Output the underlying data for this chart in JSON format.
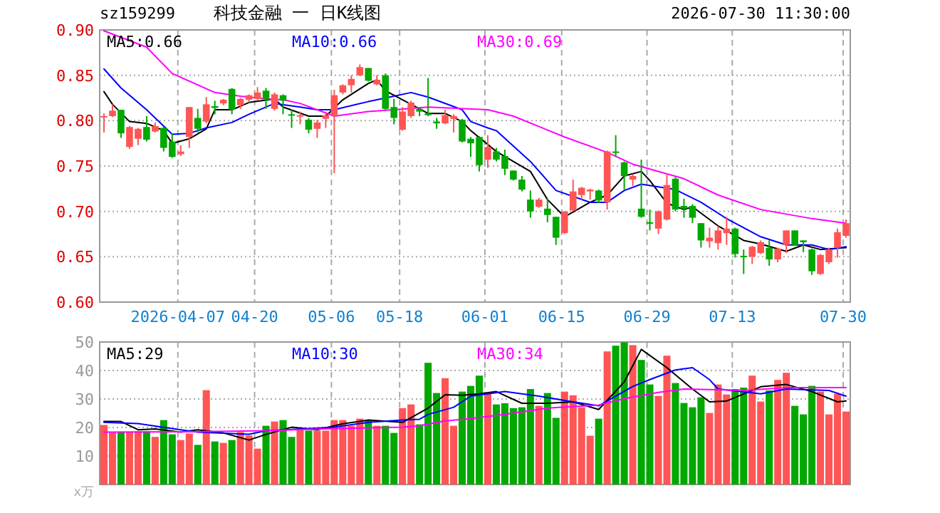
{
  "chart_data": [
    {
      "type": "candlestick",
      "title": "科技金融 一 日K线图",
      "subtitle": "sz159299",
      "annotations": [
        "2026-07-30 11:30:00"
      ],
      "grid": true,
      "legend": "top",
      "ylim": [
        0.6,
        0.9
      ],
      "yticks": [
        {
          "value": 0.6,
          "label": "0.60"
        },
        {
          "value": 0.65,
          "label": "0.65"
        },
        {
          "value": 0.7,
          "label": "0.70"
        },
        {
          "value": 0.75,
          "label": "0.75"
        },
        {
          "value": 0.8,
          "label": "0.80"
        },
        {
          "value": 0.85,
          "label": "0.85"
        },
        {
          "value": 0.9,
          "label": "0.90"
        }
      ],
      "categories": [
        null,
        null,
        null,
        null,
        null,
        null,
        null,
        null,
        null,
        "2026-04-07",
        null,
        null,
        null,
        null,
        null,
        null,
        null,
        null,
        "04-20",
        null,
        null,
        null,
        null,
        null,
        null,
        null,
        null,
        "05-06",
        null,
        null,
        null,
        null,
        null,
        null,
        null,
        "05-18",
        null,
        null,
        null,
        null,
        null,
        null,
        null,
        null,
        null,
        "06-01",
        null,
        null,
        null,
        null,
        null,
        null,
        null,
        null,
        "06-15",
        null,
        null,
        null,
        null,
        null,
        null,
        null,
        null,
        null,
        "06-29",
        null,
        null,
        null,
        null,
        null,
        null,
        null,
        null,
        null,
        "07-13",
        null,
        null,
        null,
        null,
        null,
        null,
        null,
        null,
        null,
        null,
        null,
        null,
        "07-30"
      ],
      "ohlc": [
        [
          0.804,
          0.808,
          0.787,
          0.805
        ],
        [
          0.805,
          0.818,
          0.804,
          0.811
        ],
        [
          0.812,
          0.812,
          0.781,
          0.786
        ],
        [
          0.771,
          0.794,
          0.769,
          0.793
        ],
        [
          0.78,
          0.792,
          0.773,
          0.791
        ],
        [
          0.793,
          0.805,
          0.777,
          0.779
        ],
        [
          0.788,
          0.798,
          0.787,
          0.794
        ],
        [
          0.792,
          0.793,
          0.766,
          0.77
        ],
        [
          0.777,
          0.786,
          0.759,
          0.76
        ],
        [
          0.763,
          0.773,
          0.761,
          0.766
        ],
        [
          0.782,
          0.815,
          0.77,
          0.815
        ],
        [
          0.803,
          0.813,
          0.787,
          0.791
        ],
        [
          0.799,
          0.826,
          0.797,
          0.818
        ],
        [
          0.816,
          0.822,
          0.807,
          0.814
        ],
        [
          0.819,
          0.824,
          0.817,
          0.823
        ],
        [
          0.835,
          0.836,
          0.807,
          0.812
        ],
        [
          0.817,
          0.825,
          0.813,
          0.824
        ],
        [
          0.823,
          0.829,
          0.82,
          0.828
        ],
        [
          0.824,
          0.837,
          0.822,
          0.831
        ],
        [
          0.833,
          0.836,
          0.813,
          0.824
        ],
        [
          0.813,
          0.831,
          0.811,
          0.829
        ],
        [
          0.828,
          0.829,
          0.807,
          0.822
        ],
        [
          0.807,
          0.812,
          0.792,
          0.806
        ],
        [
          0.805,
          0.81,
          0.796,
          0.806
        ],
        [
          0.801,
          0.803,
          0.786,
          0.79
        ],
        [
          0.791,
          0.801,
          0.781,
          0.798
        ],
        [
          0.802,
          0.81,
          0.792,
          0.806
        ],
        [
          0.806,
          0.834,
          0.742,
          0.828
        ],
        [
          0.831,
          0.84,
          0.829,
          0.839
        ],
        [
          0.839,
          0.85,
          0.831,
          0.846
        ],
        [
          0.85,
          0.862,
          0.849,
          0.859
        ],
        [
          0.858,
          0.858,
          0.843,
          0.844
        ],
        [
          0.84,
          0.85,
          0.839,
          0.845
        ],
        [
          0.85,
          0.852,
          0.812,
          0.813
        ],
        [
          0.815,
          0.824,
          0.796,
          0.803
        ],
        [
          0.79,
          0.815,
          0.789,
          0.81
        ],
        [
          0.805,
          0.822,
          0.803,
          0.82
        ],
        [
          0.813,
          0.815,
          0.805,
          0.81
        ],
        [
          0.808,
          0.847,
          0.805,
          0.806
        ],
        [
          0.799,
          0.803,
          0.791,
          0.797
        ],
        [
          0.797,
          0.812,
          0.796,
          0.806
        ],
        [
          0.802,
          0.807,
          0.787,
          0.805
        ],
        [
          0.801,
          0.802,
          0.776,
          0.777
        ],
        [
          0.78,
          0.782,
          0.76,
          0.775
        ],
        [
          0.782,
          0.783,
          0.744,
          0.751
        ],
        [
          0.757,
          0.784,
          0.748,
          0.771
        ],
        [
          0.766,
          0.77,
          0.755,
          0.757
        ],
        [
          0.761,
          0.768,
          0.74,
          0.747
        ],
        [
          0.745,
          0.745,
          0.734,
          0.735
        ],
        [
          0.735,
          0.739,
          0.722,
          0.724
        ],
        [
          0.713,
          0.723,
          0.693,
          0.7
        ],
        [
          0.705,
          0.715,
          0.704,
          0.713
        ],
        [
          0.703,
          0.714,
          0.688,
          0.696
        ],
        [
          0.694,
          0.694,
          0.663,
          0.671
        ],
        [
          0.676,
          0.7,
          0.675,
          0.7
        ],
        [
          0.701,
          0.735,
          0.7,
          0.722
        ],
        [
          0.718,
          0.727,
          0.713,
          0.726
        ],
        [
          0.722,
          0.725,
          0.713,
          0.724
        ],
        [
          0.723,
          0.724,
          0.709,
          0.712
        ],
        [
          0.71,
          0.767,
          0.702,
          0.766
        ],
        [
          0.766,
          0.784,
          0.76,
          0.765
        ],
        [
          0.754,
          0.755,
          0.724,
          0.739
        ],
        [
          0.735,
          0.741,
          0.728,
          0.739
        ],
        [
          0.703,
          0.757,
          0.693,
          0.694
        ],
        [
          0.688,
          0.702,
          0.679,
          0.687
        ],
        [
          0.681,
          0.701,
          0.675,
          0.7
        ],
        [
          0.691,
          0.742,
          0.69,
          0.729
        ],
        [
          0.736,
          0.738,
          0.7,
          0.702
        ],
        [
          0.706,
          0.714,
          0.693,
          0.703
        ],
        [
          0.706,
          0.708,
          0.687,
          0.693
        ],
        [
          0.687,
          0.687,
          0.66,
          0.668
        ],
        [
          0.667,
          0.682,
          0.66,
          0.671
        ],
        [
          0.665,
          0.684,
          0.658,
          0.679
        ],
        [
          0.676,
          0.694,
          0.663,
          0.681
        ],
        [
          0.681,
          0.682,
          0.649,
          0.653
        ],
        [
          0.651,
          0.658,
          0.631,
          0.65
        ],
        [
          0.65,
          0.662,
          0.642,
          0.661
        ],
        [
          0.654,
          0.668,
          0.653,
          0.666
        ],
        [
          0.66,
          0.668,
          0.64,
          0.647
        ],
        [
          0.647,
          0.66,
          0.644,
          0.659
        ],
        [
          0.663,
          0.679,
          0.654,
          0.679
        ],
        [
          0.679,
          0.679,
          0.662,
          0.663
        ],
        [
          0.668,
          0.668,
          0.655,
          0.666
        ],
        [
          0.658,
          0.659,
          0.63,
          0.634
        ],
        [
          0.631,
          0.653,
          0.63,
          0.652
        ],
        [
          0.644,
          0.66,
          0.642,
          0.658
        ],
        [
          0.66,
          0.681,
          0.649,
          0.677
        ],
        [
          0.673,
          0.691,
          0.671,
          0.687
        ]
      ],
      "colors": [
        "#ff5555",
        "#ff5555",
        "#00a800",
        "#ff5555",
        "#ff5555",
        "#00a800",
        "#ff5555",
        "#00a800",
        "#00a800",
        "#ff5555",
        "#ff5555",
        "#00a800",
        "#ff5555",
        "#00a800",
        "#ff5555",
        "#00a800",
        "#ff5555",
        "#ff5555",
        "#ff5555",
        "#00a800",
        "#ff5555",
        "#00a800",
        "#00a800",
        "#ff5555",
        "#00a800",
        "#ff5555",
        "#ff5555",
        "#ff5555",
        "#ff5555",
        "#ff5555",
        "#ff5555",
        "#00a800",
        "#ff5555",
        "#00a800",
        "#00a800",
        "#ff5555",
        "#ff5555",
        "#00a800",
        "#00a800",
        "#00a800",
        "#ff5555",
        "#ff5555",
        "#00a800",
        "#00a800",
        "#00a800",
        "#ff5555",
        "#00a800",
        "#00a800",
        "#00a800",
        "#00a800",
        "#00a800",
        "#ff5555",
        "#00a800",
        "#00a800",
        "#ff5555",
        "#ff5555",
        "#ff5555",
        "#ff5555",
        "#00a800",
        "#ff5555",
        "#00a800",
        "#00a800",
        "#ff5555",
        "#00a800",
        "#00a800",
        "#ff5555",
        "#ff5555",
        "#00a800",
        "#00a800",
        "#00a800",
        "#00a800",
        "#ff5555",
        "#ff5555",
        "#ff5555",
        "#00a800",
        "#00a800",
        "#ff5555",
        "#ff5555",
        "#00a800",
        "#ff5555",
        "#ff5555",
        "#00a800",
        "#00a800",
        "#00a800",
        "#ff5555",
        "#ff5555",
        "#ff5555",
        "#ff5555"
      ],
      "series": [
        {
          "name": "MA5:0.66",
          "type": "line",
          "color": "#000000",
          "values": [
            0.832,
            0.818,
            null,
            0.799,
            null,
            0.797,
            null,
            0.789,
            0.775,
            null,
            0.78,
            null,
            0.791,
            0.812,
            null,
            0.812,
            null,
            0.82,
            null,
            null,
            0.824,
            0.815,
            null,
            null,
            0.805,
            null,
            0.805,
            null,
            0.823,
            null,
            null,
            0.841,
            0.845,
            0.833,
            null,
            null,
            0.818,
            null,
            0.808,
            null,
            0.808,
            null,
            0.799,
            0.789,
            null,
            null,
            0.766,
            null,
            null,
            null,
            0.744,
            null,
            0.713,
            null,
            0.694,
            null,
            null,
            0.71,
            null,
            0.718,
            null,
            0.739,
            null,
            0.744,
            0.734,
            null,
            0.709,
            null,
            0.702,
            0.705,
            null,
            null,
            0.684,
            null,
            null,
            0.668,
            null,
            0.664,
            null,
            null,
            0.656,
            null,
            0.663,
            null,
            0.658,
            null,
            null,
            0.66
          ]
        },
        {
          "name": "MA10:0.66",
          "type": "line",
          "color": "#0000ff",
          "values": [
            0.857,
            null,
            0.836,
            null,
            null,
            0.812,
            null,
            0.794,
            0.785,
            null,
            0.786,
            null,
            0.792,
            null,
            null,
            0.798,
            null,
            0.807,
            null,
            null,
            0.819,
            null,
            null,
            0.815,
            null,
            0.812,
            null,
            0.812,
            null,
            null,
            null,
            0.821,
            null,
            null,
            0.827,
            null,
            0.831,
            null,
            0.826,
            null,
            null,
            null,
            0.812,
            0.799,
            null,
            0.792,
            0.789,
            null,
            null,
            null,
            0.755,
            null,
            null,
            0.723,
            null,
            null,
            null,
            0.71,
            null,
            0.71,
            null,
            0.723,
            null,
            0.73,
            null,
            null,
            null,
            0.724,
            null,
            null,
            0.71,
            null,
            null,
            0.692,
            null,
            null,
            null,
            0.672,
            null,
            null,
            0.663,
            null,
            null,
            0.663,
            null,
            0.658,
            null,
            0.661
          ]
        },
        {
          "name": "MA30:0.69",
          "type": "line",
          "color": "#ff00ff",
          "values": [
            0.899,
            null,
            null,
            null,
            null,
            0.881,
            null,
            null,
            0.852,
            null,
            null,
            null,
            null,
            0.831,
            null,
            null,
            0.827,
            null,
            null,
            0.824,
            null,
            0.823,
            null,
            0.819,
            null,
            null,
            null,
            0.805,
            null,
            null,
            null,
            0.81,
            null,
            null,
            0.812,
            null,
            null,
            null,
            0.815,
            null,
            null,
            null,
            null,
            null,
            null,
            0.812,
            null,
            null,
            0.805,
            null,
            null,
            null,
            null,
            null,
            0.782,
            null,
            null,
            null,
            null,
            0.765,
            null,
            null,
            0.752,
            null,
            null,
            null,
            null,
            null,
            0.736,
            null,
            null,
            null,
            0.718,
            null,
            null,
            null,
            null,
            0.702,
            null,
            null,
            null,
            null,
            null,
            0.692,
            null,
            null,
            null,
            0.687
          ]
        }
      ]
    },
    {
      "type": "bar",
      "ylabel": "x万",
      "grid": true,
      "legend": "top",
      "tick_labels": "y",
      "ylim": [
        0,
        50
      ],
      "yticks": [
        10,
        20,
        30,
        40,
        50
      ],
      "categories": [
        null,
        null,
        null,
        null,
        null,
        null,
        null,
        null,
        null,
        null,
        null,
        null,
        null,
        null,
        null,
        null,
        null,
        null,
        null,
        null,
        null,
        null,
        null,
        null,
        null,
        null,
        null,
        null,
        null,
        null,
        null,
        null,
        null,
        null,
        null,
        null,
        null,
        null,
        null,
        null,
        null,
        null,
        null,
        null,
        null,
        null,
        null,
        null,
        null,
        null,
        null,
        null,
        null,
        null,
        null,
        null,
        null,
        null,
        null,
        null,
        null,
        null,
        null,
        null,
        null,
        null,
        null,
        null,
        null,
        null,
        null,
        null,
        null,
        null,
        null,
        null,
        null,
        null,
        null,
        null,
        null,
        null,
        null,
        null,
        null,
        null,
        null,
        null
      ],
      "series": [
        {
          "type": "bar",
          "values": [
            20.9,
            18.4,
            18.4,
            18.4,
            18.7,
            18.7,
            16.7,
            22.6,
            17.6,
            15.6,
            17.9,
            13.9,
            33.1,
            15.1,
            14.6,
            15.6,
            18.4,
            17.2,
            12.6,
            20.6,
            22.1,
            22.6,
            16.7,
            19.6,
            18.9,
            18.9,
            18.9,
            22.6,
            22.6,
            20.6,
            23.1,
            22.6,
            20.6,
            20.6,
            18.1,
            26.8,
            28.1,
            21.1,
            42.7,
            32.1,
            37.3,
            20.6,
            32.6,
            34.6,
            38.2,
            31.8,
            28.1,
            28.5,
            26.8,
            27.1,
            33.5,
            27.6,
            32.1,
            23.4,
            32.6,
            31.3,
            27.1,
            17.1,
            23.1,
            46.7,
            48.7,
            49.9,
            48.9,
            43.7,
            35.1,
            31.1,
            45.2,
            35.6,
            28.6,
            27.1,
            30.6,
            25.1,
            35.1,
            31.6,
            33.5,
            34.0,
            38.2,
            29.1,
            33.0,
            36.7,
            39.2,
            27.6,
            24.6,
            34.6,
            32.6,
            24.6,
            31.8,
            25.6
          ],
          "colors": [
            "#ff5555",
            "#ff5555",
            "#00a800",
            "#ff5555",
            "#ff5555",
            "#00a800",
            "#ff5555",
            "#00a800",
            "#00a800",
            "#ff5555",
            "#ff5555",
            "#00a800",
            "#ff5555",
            "#00a800",
            "#ff5555",
            "#00a800",
            "#ff5555",
            "#ff5555",
            "#ff5555",
            "#00a800",
            "#ff5555",
            "#00a800",
            "#00a800",
            "#ff5555",
            "#00a800",
            "#ff5555",
            "#ff5555",
            "#ff5555",
            "#ff5555",
            "#ff5555",
            "#ff5555",
            "#00a800",
            "#ff5555",
            "#00a800",
            "#00a800",
            "#ff5555",
            "#ff5555",
            "#00a800",
            "#00a800",
            "#00a800",
            "#ff5555",
            "#ff5555",
            "#00a800",
            "#00a800",
            "#00a800",
            "#ff5555",
            "#00a800",
            "#00a800",
            "#00a800",
            "#00a800",
            "#00a800",
            "#ff5555",
            "#00a800",
            "#00a800",
            "#ff5555",
            "#ff5555",
            "#ff5555",
            "#ff5555",
            "#00a800",
            "#ff5555",
            "#00a800",
            "#00a800",
            "#ff5555",
            "#00a800",
            "#00a800",
            "#ff5555",
            "#ff5555",
            "#00a800",
            "#00a800",
            "#00a800",
            "#00a800",
            "#ff5555",
            "#ff5555",
            "#ff5555",
            "#00a800",
            "#00a800",
            "#ff5555",
            "#ff5555",
            "#00a800",
            "#ff5555",
            "#ff5555",
            "#00a800",
            "#00a800",
            "#00a800",
            "#ff5555",
            "#ff5555",
            "#ff5555",
            "#ff5555"
          ]
        },
        {
          "name": "MA5:29",
          "type": "line",
          "color": "#000000",
          "values": [
            22.1,
            null,
            22.1,
            null,
            19.2,
            null,
            19.5,
            null,
            null,
            18.4,
            null,
            19.2,
            null,
            null,
            18.1,
            null,
            null,
            15.6,
            null,
            17.6,
            null,
            null,
            20.1,
            null,
            null,
            19.2,
            null,
            null,
            21.3,
            null,
            null,
            22.6,
            null,
            null,
            null,
            21.8,
            null,
            null,
            26.8,
            null,
            31.5,
            null,
            31.3,
            null,
            31.8,
            null,
            32.6,
            null,
            null,
            28.5,
            null,
            null,
            28.5,
            null,
            null,
            29.0,
            null,
            null,
            26.3,
            null,
            null,
            36.0,
            null,
            47.4,
            null,
            null,
            41.0,
            null,
            null,
            33.5,
            null,
            29.0,
            null,
            29.3,
            null,
            null,
            null,
            34.3,
            null,
            null,
            35.1,
            null,
            null,
            32.6,
            null,
            null,
            29.0,
            29.3
          ]
        },
        {
          "name": "MA10:30",
          "type": "line",
          "color": "#0000ff",
          "values": [
            21.8,
            null,
            null,
            null,
            21.4,
            null,
            null,
            null,
            19.6,
            null,
            null,
            18.4,
            null,
            null,
            null,
            null,
            null,
            17.6,
            null,
            18.9,
            null,
            null,
            null,
            null,
            19.6,
            null,
            null,
            20.1,
            null,
            null,
            null,
            21.8,
            null,
            null,
            null,
            22.6,
            null,
            22.9,
            24.6,
            null,
            null,
            27.1,
            null,
            31.0,
            null,
            null,
            null,
            32.6,
            null,
            null,
            null,
            31.0,
            null,
            null,
            null,
            29.0,
            null,
            null,
            27.6,
            null,
            null,
            null,
            34.4,
            null,
            36.8,
            null,
            null,
            40.2,
            null,
            41.0,
            null,
            36.8,
            33.5,
            null,
            null,
            null,
            null,
            31.8,
            null,
            null,
            33.5,
            null,
            null,
            null,
            null,
            33.0,
            null,
            31.0
          ]
        },
        {
          "name": "MA30:34",
          "type": "line",
          "color": "#ff00ff",
          "values": [
            18.4,
            null,
            null,
            null,
            null,
            null,
            null,
            null,
            null,
            null,
            18.5,
            null,
            null,
            null,
            null,
            null,
            null,
            null,
            null,
            18.9,
            null,
            null,
            null,
            null,
            null,
            null,
            null,
            19.6,
            null,
            null,
            null,
            null,
            null,
            null,
            null,
            20.1,
            null,
            20.6,
            null,
            null,
            22.3,
            null,
            null,
            23.1,
            null,
            null,
            null,
            24.6,
            null,
            null,
            null,
            null,
            26.8,
            null,
            null,
            null,
            null,
            null,
            27.9,
            null,
            null,
            30.1,
            null,
            null,
            null,
            32.3,
            null,
            null,
            33.5,
            null,
            null,
            null,
            null,
            null,
            null,
            33.0,
            null,
            null,
            null,
            null,
            34.0,
            null,
            null,
            null,
            null,
            null,
            null,
            34.0
          ]
        }
      ]
    }
  ]
}
